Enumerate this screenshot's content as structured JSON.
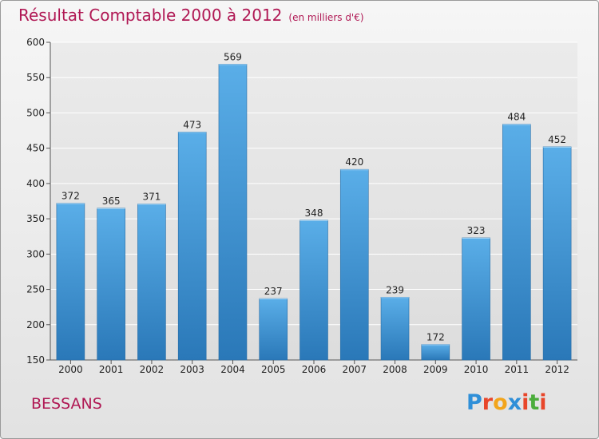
{
  "title": "Résultat Comptable 2000 à 2012",
  "subtitle": "(en milliers d'€)",
  "city": "BESSANS",
  "logo": {
    "letters": [
      "P",
      "r",
      "o",
      "x",
      "i",
      "t",
      "i"
    ],
    "colors": [
      "#2f8fd8",
      "#e8462a",
      "#f2a51c",
      "#2f8fd8",
      "#e8462a",
      "#4cad3c",
      "#e8462a"
    ]
  },
  "colors": {
    "bar_top": "#5aaee8",
    "bar_bottom": "#2a78b8",
    "title": "#b01854",
    "grid": "#ffffff"
  },
  "chart_data": {
    "type": "bar",
    "title": "Résultat Comptable 2000 à 2012",
    "categories": [
      "2000",
      "2001",
      "2002",
      "2003",
      "2004",
      "2005",
      "2006",
      "2007",
      "2008",
      "2009",
      "2010",
      "2011",
      "2012"
    ],
    "values": [
      372,
      365,
      371,
      473,
      569,
      237,
      348,
      420,
      239,
      172,
      323,
      484,
      452
    ],
    "xlabel": "",
    "ylabel": "",
    "ylim": [
      150,
      600
    ],
    "yticks": [
      150,
      200,
      250,
      300,
      350,
      400,
      450,
      500,
      550,
      600
    ],
    "grid": true
  }
}
